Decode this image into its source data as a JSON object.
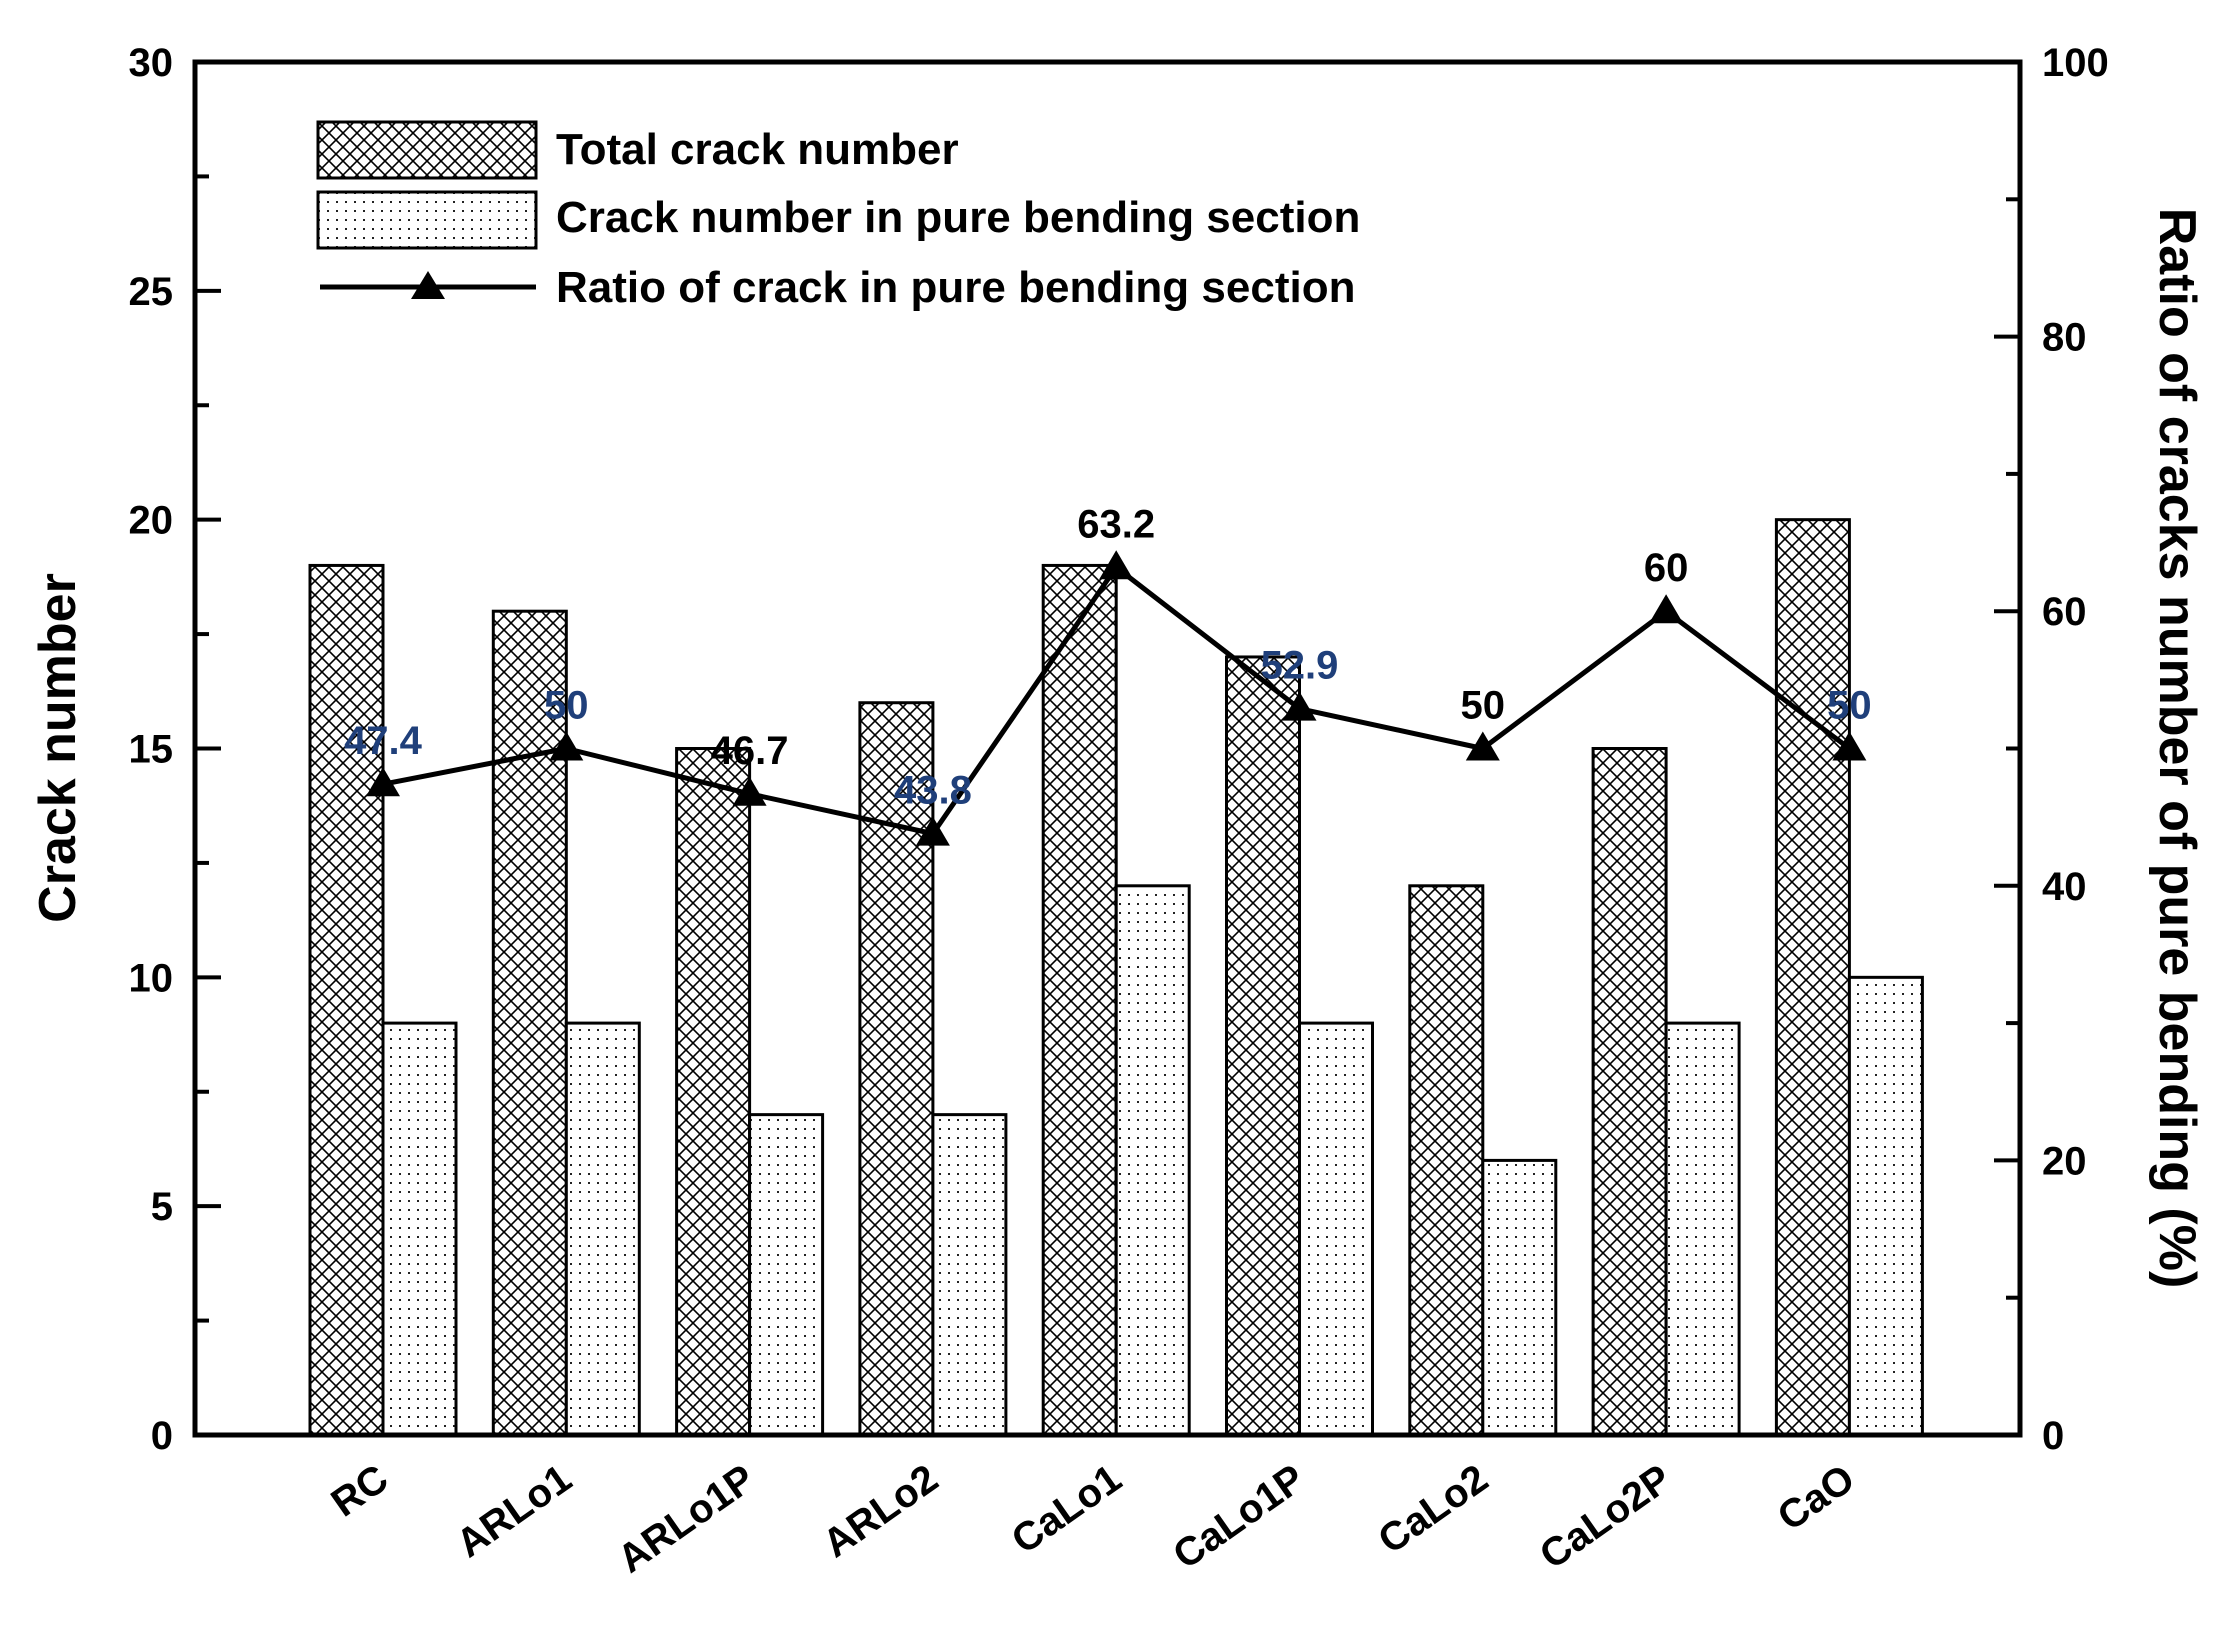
{
  "chart_data": {
    "type": "bar",
    "categories": [
      "RC",
      "ARLo1",
      "ARLo1P",
      "ARLo2",
      "CaLo1",
      "CaLo1P",
      "CaLo2",
      "CaLo2P",
      "CaO"
    ],
    "series": [
      {
        "name": "Total crack number",
        "axis": "left",
        "kind": "bar",
        "pattern": "crosshatch",
        "values": [
          19,
          18,
          15,
          16,
          19,
          17,
          12,
          15,
          20
        ]
      },
      {
        "name": "Crack number in pure bending section",
        "axis": "left",
        "kind": "bar",
        "pattern": "dots",
        "values": [
          9,
          9,
          7,
          7,
          12,
          9,
          6,
          9,
          10
        ]
      },
      {
        "name": "Ratio of crack in pure bending section",
        "axis": "right",
        "kind": "line",
        "marker": "triangle",
        "values": [
          47.4,
          50,
          46.7,
          43.8,
          63.2,
          52.9,
          50,
          60,
          50
        ]
      }
    ],
    "data_labels": [
      "47.4",
      "50",
      "46.7",
      "43.8",
      "63.2",
      "52.9",
      "50",
      "60",
      "50"
    ],
    "data_label_colors": [
      "#1f3f7a",
      "#1f3f7a",
      "#000000",
      "#1f3f7a",
      "#000000",
      "#1f3f7a",
      "#000000",
      "#000000",
      "#1f3f7a"
    ],
    "ylabel": "Crack number",
    "y2label": "Ratio of cracks number of pure bending (%)",
    "ylim": [
      0,
      30
    ],
    "y2lim": [
      0,
      100
    ],
    "yticks": [
      0,
      5,
      10,
      15,
      20,
      25,
      30
    ],
    "y2ticks": [
      0,
      20,
      40,
      60,
      80,
      100
    ],
    "legend_position": "top-left",
    "grid": false
  }
}
